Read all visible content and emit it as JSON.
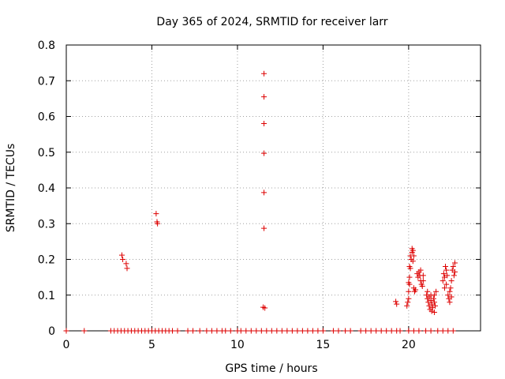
{
  "chart_data": {
    "type": "scatter",
    "title": "Day 365 of 2024, SRMTID for receiver larr",
    "xlabel": "GPS time / hours",
    "ylabel": "SRMTID / TECUs",
    "xlim": [
      0,
      24.2
    ],
    "ylim": [
      0,
      0.8
    ],
    "xticks": [
      0,
      5,
      10,
      15,
      20
    ],
    "xtick_labels": [
      "0",
      "5",
      "10",
      "15",
      "20"
    ],
    "yticks": [
      0,
      0.1,
      0.2,
      0.3,
      0.4,
      0.5,
      0.6,
      0.7,
      0.8
    ],
    "ytick_labels": [
      "0",
      "0.1",
      "0.2",
      "0.3",
      "0.4",
      "0.5",
      "0.6",
      "0.7",
      "0.8"
    ],
    "grid": true,
    "marker": "+",
    "series": [
      {
        "name": "SRMTID",
        "color": "#dd0000",
        "points": [
          [
            0.0,
            0
          ],
          [
            1.05,
            0
          ],
          [
            2.6,
            0
          ],
          [
            2.8,
            0
          ],
          [
            3.0,
            0
          ],
          [
            3.2,
            0
          ],
          [
            3.4,
            0
          ],
          [
            3.6,
            0
          ],
          [
            3.8,
            0
          ],
          [
            4.0,
            0
          ],
          [
            4.2,
            0
          ],
          [
            4.4,
            0
          ],
          [
            4.6,
            0
          ],
          [
            4.8,
            0
          ],
          [
            5.0,
            0
          ],
          [
            5.2,
            0
          ],
          [
            5.4,
            0
          ],
          [
            5.6,
            0
          ],
          [
            5.8,
            0
          ],
          [
            6.0,
            0
          ],
          [
            6.2,
            0
          ],
          [
            6.5,
            0
          ],
          [
            7.1,
            0
          ],
          [
            7.4,
            0
          ],
          [
            7.8,
            0
          ],
          [
            8.2,
            0
          ],
          [
            8.5,
            0
          ],
          [
            8.8,
            0
          ],
          [
            9.1,
            0
          ],
          [
            9.3,
            0
          ],
          [
            9.6,
            0
          ],
          [
            10.0,
            0
          ],
          [
            10.2,
            0
          ],
          [
            10.5,
            0
          ],
          [
            10.8,
            0
          ],
          [
            11.1,
            0
          ],
          [
            11.4,
            0
          ],
          [
            11.7,
            0
          ],
          [
            12.0,
            0
          ],
          [
            12.3,
            0
          ],
          [
            12.6,
            0
          ],
          [
            12.9,
            0
          ],
          [
            13.2,
            0
          ],
          [
            13.5,
            0
          ],
          [
            13.8,
            0
          ],
          [
            14.1,
            0
          ],
          [
            14.4,
            0
          ],
          [
            14.7,
            0
          ],
          [
            15.0,
            0
          ],
          [
            15.6,
            0
          ],
          [
            15.9,
            0
          ],
          [
            16.3,
            0
          ],
          [
            16.6,
            0
          ],
          [
            17.2,
            0
          ],
          [
            17.5,
            0
          ],
          [
            17.8,
            0
          ],
          [
            18.1,
            0
          ],
          [
            18.4,
            0
          ],
          [
            18.7,
            0
          ],
          [
            19.0,
            0
          ],
          [
            19.3,
            0
          ],
          [
            19.5,
            0
          ],
          [
            20.0,
            0
          ],
          [
            20.3,
            0
          ],
          [
            20.6,
            0
          ],
          [
            21.0,
            0
          ],
          [
            21.3,
            0
          ],
          [
            21.7,
            0
          ],
          [
            22.0,
            0
          ],
          [
            22.3,
            0
          ],
          [
            22.6,
            0
          ],
          [
            3.25,
            0.212
          ],
          [
            3.3,
            0.2
          ],
          [
            3.5,
            0.188
          ],
          [
            3.55,
            0.175
          ],
          [
            5.25,
            0.328
          ],
          [
            5.3,
            0.305
          ],
          [
            5.33,
            0.3
          ],
          [
            11.55,
            0.72
          ],
          [
            11.55,
            0.655
          ],
          [
            11.55,
            0.58
          ],
          [
            11.55,
            0.497
          ],
          [
            11.55,
            0.387
          ],
          [
            11.55,
            0.287
          ],
          [
            11.5,
            0.066
          ],
          [
            11.6,
            0.064
          ],
          [
            19.25,
            0.082
          ],
          [
            19.3,
            0.075
          ],
          [
            19.9,
            0.07
          ],
          [
            19.95,
            0.08
          ],
          [
            20.0,
            0.09
          ],
          [
            20.0,
            0.11
          ],
          [
            20.05,
            0.13
          ],
          [
            20.0,
            0.135
          ],
          [
            20.05,
            0.15
          ],
          [
            20.1,
            0.175
          ],
          [
            20.05,
            0.18
          ],
          [
            20.15,
            0.2
          ],
          [
            20.1,
            0.21
          ],
          [
            20.2,
            0.22
          ],
          [
            20.2,
            0.23
          ],
          [
            20.25,
            0.225
          ],
          [
            20.3,
            0.21
          ],
          [
            20.25,
            0.195
          ],
          [
            20.3,
            0.12
          ],
          [
            20.35,
            0.11
          ],
          [
            20.4,
            0.115
          ],
          [
            20.5,
            0.16
          ],
          [
            20.55,
            0.15
          ],
          [
            20.6,
            0.165
          ],
          [
            20.65,
            0.155
          ],
          [
            20.7,
            0.14
          ],
          [
            20.7,
            0.17
          ],
          [
            20.75,
            0.13
          ],
          [
            20.8,
            0.125
          ],
          [
            20.85,
            0.14
          ],
          [
            20.85,
            0.155
          ],
          [
            21.05,
            0.1
          ],
          [
            21.1,
            0.09
          ],
          [
            21.1,
            0.11
          ],
          [
            21.15,
            0.08
          ],
          [
            21.2,
            0.07
          ],
          [
            21.2,
            0.095
          ],
          [
            21.25,
            0.06
          ],
          [
            21.3,
            0.085
          ],
          [
            21.3,
            0.1
          ],
          [
            21.35,
            0.075
          ],
          [
            21.4,
            0.065
          ],
          [
            21.45,
            0.09
          ],
          [
            21.5,
            0.08
          ],
          [
            21.5,
            0.1
          ],
          [
            21.55,
            0.07
          ],
          [
            21.6,
            0.11
          ],
          [
            21.35,
            0.055
          ],
          [
            21.5,
            0.052
          ],
          [
            22.0,
            0.14
          ],
          [
            22.05,
            0.16
          ],
          [
            22.1,
            0.15
          ],
          [
            22.1,
            0.12
          ],
          [
            22.15,
            0.18
          ],
          [
            22.2,
            0.17
          ],
          [
            22.2,
            0.13
          ],
          [
            22.25,
            0.155
          ],
          [
            22.3,
            0.1
          ],
          [
            22.35,
            0.09
          ],
          [
            22.4,
            0.11
          ],
          [
            22.4,
            0.08
          ],
          [
            22.45,
            0.12
          ],
          [
            22.5,
            0.095
          ],
          [
            22.5,
            0.14
          ],
          [
            22.55,
            0.17
          ],
          [
            22.6,
            0.18
          ],
          [
            22.65,
            0.155
          ],
          [
            22.7,
            0.19
          ],
          [
            22.7,
            0.165
          ]
        ]
      }
    ]
  }
}
